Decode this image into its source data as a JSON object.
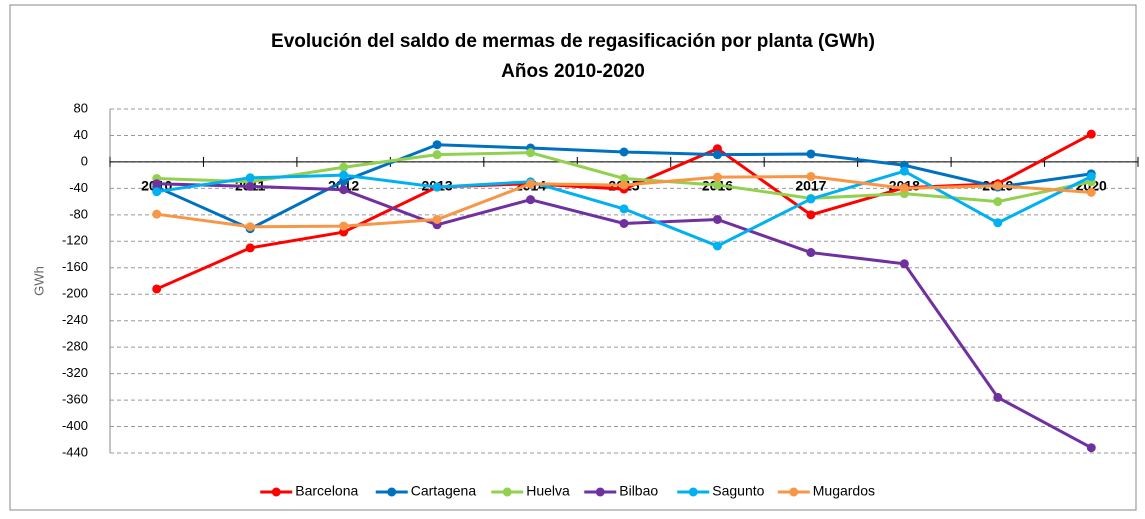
{
  "chart_data": {
    "type": "line",
    "title": "Evolución del saldo de mermas de regasificación por planta (GWh)",
    "subtitle": "Años 2010-2020",
    "y_label": "GWh",
    "categories": [
      "2010",
      "2011",
      "2012",
      "2013",
      "2014",
      "2015",
      "2016",
      "2017",
      "2018",
      "2019",
      "2020"
    ],
    "series": [
      {
        "name": "Barcelona",
        "color": "#ff0000",
        "values": [
          -192,
          -130,
          -106,
          -38,
          -33,
          -41,
          20,
          -80,
          -39,
          -33,
          42
        ]
      },
      {
        "name": "Cartagena",
        "color": "#0070c0",
        "values": [
          -38,
          -101,
          -29,
          26,
          21,
          15,
          11,
          12,
          -5,
          -38,
          -18
        ]
      },
      {
        "name": "Huelva",
        "color": "#92d050",
        "values": [
          -25,
          -30,
          -8,
          11,
          14,
          -25,
          -35,
          -55,
          -48,
          -60,
          -30
        ]
      },
      {
        "name": "Bilbao",
        "color": "#7030a0",
        "values": [
          -33,
          -37,
          -42,
          -95,
          -57,
          -93,
          -87,
          -137,
          -154,
          -356,
          -432
        ]
      },
      {
        "name": "Sagunto",
        "color": "#00b0f0",
        "values": [
          -45,
          -24,
          -20,
          -38,
          -30,
          -71,
          -127,
          -56,
          -14,
          -92,
          -22
        ]
      },
      {
        "name": "Mugardos",
        "color": "#f79646",
        "values": [
          -79,
          -98,
          -97,
          -87,
          -33,
          -35,
          -23,
          -22,
          -40,
          -36,
          -46
        ]
      }
    ],
    "ylim": [
      -440,
      80
    ],
    "yticks": [
      80,
      40,
      0,
      -40,
      -80,
      -120,
      -160,
      -200,
      -240,
      -280,
      -320,
      -360,
      -400,
      -440
    ],
    "grid": true,
    "legend": "bottom"
  }
}
